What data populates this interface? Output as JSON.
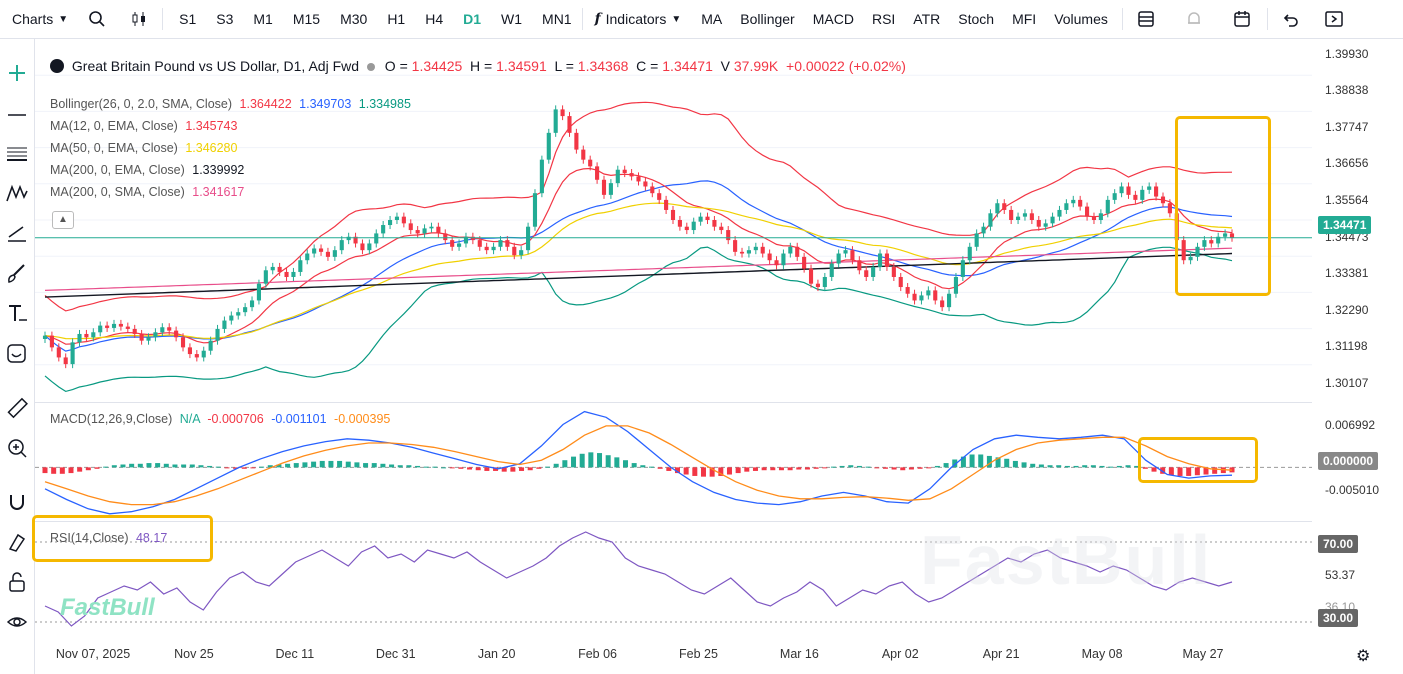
{
  "toolbar": {
    "charts": "Charts",
    "timeframes": [
      "S1",
      "S3",
      "M1",
      "M15",
      "M30",
      "H1",
      "H4",
      "D1",
      "W1",
      "MN1"
    ],
    "active_timeframe": "D1",
    "indicators": "Indicators",
    "studies": [
      "MA",
      "Bollinger",
      "MACD",
      "RSI",
      "ATR",
      "Stoch",
      "MFI",
      "Volumes"
    ]
  },
  "symbol": {
    "title": "Great Britain Pound vs US Dollar, D1, Adj Fwd",
    "o_label": "O",
    "o": "1.34425",
    "h_label": "H",
    "h": "1.34591",
    "l_label": "L",
    "l": "1.34368",
    "c_label": "C",
    "c": "1.34471",
    "v_label": "V",
    "v": "37.99K",
    "chg": "+0.00022 (+0.02%)"
  },
  "studies_legend": {
    "boll": {
      "label": "Bollinger(26, 0, 2.0, SMA, Close)",
      "v1": "1.364422",
      "v2": "1.349703",
      "v3": "1.334985"
    },
    "ma12": {
      "label": "MA(12, 0, EMA, Close)",
      "v": "1.345743"
    },
    "ma50": {
      "label": "MA(50, 0, EMA, Close)",
      "v": "1.346280"
    },
    "ma200e": {
      "label": "MA(200, 0, EMA, Close)",
      "v": "1.339992"
    },
    "ma200s": {
      "label": "MA(200, 0, SMA, Close)",
      "v": "1.341617"
    },
    "macd": {
      "label": "MACD(12,26,9,Close)",
      "na": "N/A",
      "v1": "-0.000706",
      "v2": "-0.001101",
      "v3": "-0.000395"
    },
    "rsi": {
      "label": "RSI(14,Close)",
      "v": "48.17"
    }
  },
  "price_axis": {
    "labels": [
      "1.39930",
      "1.38838",
      "1.37747",
      "1.36656",
      "1.35564",
      "1.34473",
      "1.33381",
      "1.32290",
      "1.31198",
      "1.30107"
    ],
    "current": "1.34471"
  },
  "macd_axis": {
    "labels": [
      "0.006992",
      "-0.005010"
    ],
    "current": "0.000000"
  },
  "rsi_axis": {
    "labels": [
      "53.37",
      "36.10"
    ],
    "upper": "70.00",
    "lower": "30.00"
  },
  "time_axis": {
    "labels": [
      "Nov 07, 2025",
      "Nov 25",
      "Dec 11",
      "Dec 31",
      "Jan 20",
      "Feb 06",
      "Feb 25",
      "Mar 16",
      "Apr 02",
      "Apr 21",
      "May 08",
      "May 27"
    ]
  },
  "watermark": "FastBull",
  "colors": {
    "up": "#22ab94",
    "down": "#f23645",
    "accent": "#2962ff",
    "highlight": "#f5b800",
    "rsi": "#7e57c2"
  },
  "chart_data": {
    "type": "candlestick",
    "y_range": [
      1.296,
      1.404
    ],
    "closes": [
      1.3155,
      1.312,
      1.309,
      1.307,
      1.3135,
      1.316,
      1.315,
      1.3165,
      1.3185,
      1.3178,
      1.319,
      1.3182,
      1.3175,
      1.316,
      1.314,
      1.315,
      1.3165,
      1.318,
      1.317,
      1.315,
      1.312,
      1.31,
      1.309,
      1.311,
      1.314,
      1.3175,
      1.32,
      1.3215,
      1.3225,
      1.324,
      1.326,
      1.331,
      1.335,
      1.336,
      1.3345,
      1.333,
      1.3345,
      1.338,
      1.34,
      1.3415,
      1.3405,
      1.339,
      1.341,
      1.344,
      1.345,
      1.343,
      1.341,
      1.343,
      1.346,
      1.3485,
      1.35,
      1.351,
      1.349,
      1.347,
      1.346,
      1.3475,
      1.348,
      1.346,
      1.344,
      1.342,
      1.343,
      1.345,
      1.344,
      1.342,
      1.341,
      1.342,
      1.344,
      1.342,
      1.3395,
      1.341,
      1.348,
      1.358,
      1.368,
      1.376,
      1.383,
      1.381,
      1.376,
      1.371,
      1.368,
      1.366,
      1.362,
      1.3575,
      1.361,
      1.365,
      1.364,
      1.363,
      1.3615,
      1.36,
      1.358,
      1.356,
      1.353,
      1.35,
      1.348,
      1.347,
      1.3495,
      1.351,
      1.35,
      1.348,
      1.347,
      1.344,
      1.3405,
      1.34,
      1.341,
      1.342,
      1.34,
      1.338,
      1.3365,
      1.34,
      1.342,
      1.339,
      1.3355,
      1.331,
      1.33,
      1.333,
      1.337,
      1.34,
      1.341,
      1.338,
      1.335,
      1.333,
      1.336,
      1.34,
      1.336,
      1.333,
      1.33,
      1.328,
      1.326,
      1.3275,
      1.329,
      1.326,
      1.324,
      1.328,
      1.333,
      1.338,
      1.342,
      1.346,
      1.348,
      1.352,
      1.355,
      1.353,
      1.35,
      1.351,
      1.352,
      1.35,
      1.348,
      1.349,
      1.351,
      1.353,
      1.355,
      1.356,
      1.354,
      1.351,
      1.35,
      1.352,
      1.356,
      1.358,
      1.36,
      1.3575,
      1.356,
      1.359,
      1.36,
      1.357,
      1.355,
      1.352,
      1.344,
      1.338,
      1.339,
      1.342,
      1.344,
      1.343,
      1.345,
      1.346,
      1.3447
    ],
    "macd": {
      "range": [
        -0.0075,
        0.009
      ],
      "hist": [
        -0.0008,
        -0.0009,
        -0.0009,
        -0.0008,
        -0.0006,
        -0.0004,
        -0.0002,
        0.0001,
        0.0003,
        0.0004,
        0.0005,
        0.0005,
        0.0006,
        0.0006,
        0.0005,
        0.0004,
        0.0004,
        0.0004,
        0.0003,
        0.0002,
        0.0001,
        -0.0001,
        -0.0002,
        -0.0002,
        -0.0001,
        0.0001,
        0.0003,
        0.0004,
        0.0005,
        0.0006,
        0.0007,
        0.0008,
        0.0009,
        0.0009,
        0.0009,
        0.0008,
        0.0007,
        0.0006,
        0.0006,
        0.0005,
        0.0004,
        0.0003,
        0.0003,
        0.0002,
        0.0001,
        0.0001,
        0.0,
        -0.0001,
        -0.0002,
        -0.0003,
        -0.0004,
        -0.0005,
        -0.0005,
        -0.0006,
        -0.0006,
        -0.0005,
        -0.0004,
        -0.0002,
        0.0001,
        0.0005,
        0.001,
        0.0015,
        0.0019,
        0.0021,
        0.002,
        0.0017,
        0.0014,
        0.001,
        0.0006,
        0.0003,
        0.0001,
        -0.0002,
        -0.0005,
        -0.0008,
        -0.001,
        -0.0012,
        -0.0013,
        -0.0013,
        -0.0012,
        -0.001,
        -0.0008,
        -0.0006,
        -0.0005,
        -0.0004,
        -0.0004,
        -0.0004,
        -0.0004,
        -0.0003,
        -0.0003,
        -0.0002,
        -0.0001,
        0.0001,
        0.0002,
        0.0003,
        0.0002,
        0.0001,
        -0.0001,
        -0.0002,
        -0.0003,
        -0.0004,
        -0.0003,
        -0.0002,
        -0.0001,
        0.0002,
        0.0006,
        0.0011,
        0.0015,
        0.0018,
        0.0018,
        0.0016,
        0.0014,
        0.0012,
        0.0009,
        0.0007,
        0.0005,
        0.0004,
        0.0003,
        0.0003,
        0.0002,
        0.0002,
        0.0003,
        0.0003,
        0.0002,
        0.0001,
        0.0002,
        0.0003,
        0.0002,
        -0.0002,
        -0.0006,
        -0.0009,
        -0.0011,
        -0.0012,
        -0.0012,
        -0.0011,
        -0.001,
        -0.0009,
        -0.0008,
        -0.0007
      ],
      "macd_line": [
        -0.003,
        -0.0045,
        -0.0058,
        -0.0065,
        -0.0062,
        -0.0055,
        -0.0045,
        -0.003,
        -0.0015,
        0.0,
        0.0012,
        0.0022,
        0.003,
        0.0036,
        0.004,
        0.0038,
        0.0034,
        0.0028,
        0.002,
        0.0012,
        0.0004,
        -0.0002,
        0.0005,
        0.003,
        0.006,
        0.0078,
        0.007,
        0.005,
        0.0025,
        0.0,
        -0.002,
        -0.0035,
        -0.0045,
        -0.005,
        -0.0052,
        -0.0048,
        -0.004,
        -0.0035,
        -0.004,
        -0.0048,
        -0.005,
        -0.003,
        0.0,
        0.0025,
        0.004,
        0.0045,
        0.0042,
        0.004,
        0.0042,
        0.0045,
        0.004,
        0.001,
        -0.001,
        -0.0015,
        -0.0012,
        -0.0011
      ],
      "signal_line": [
        -0.002,
        -0.003,
        -0.004,
        -0.0048,
        -0.0052,
        -0.0052,
        -0.0048,
        -0.004,
        -0.003,
        -0.0018,
        -0.0006,
        0.0006,
        0.0016,
        0.0024,
        0.003,
        0.0034,
        0.0034,
        0.0032,
        0.0028,
        0.0022,
        0.0015,
        0.0008,
        0.0004,
        0.001,
        0.0025,
        0.0045,
        0.0058,
        0.0058,
        0.0048,
        0.0032,
        0.0014,
        -0.0004,
        -0.002,
        -0.0032,
        -0.004,
        -0.0044,
        -0.0044,
        -0.0042,
        -0.0041,
        -0.0043,
        -0.0046,
        -0.0044,
        -0.003,
        -0.001,
        0.001,
        0.0025,
        0.0034,
        0.0038,
        0.004,
        0.0042,
        0.0042,
        0.003,
        0.0015,
        0.0005,
        -0.0002,
        -0.0004
      ]
    },
    "rsi": {
      "range": [
        20,
        80
      ],
      "values": [
        38,
        35,
        28,
        33,
        42,
        45,
        48,
        46,
        50,
        44,
        47,
        40,
        36,
        45,
        52,
        55,
        50,
        48,
        54,
        60,
        63,
        66,
        62,
        58,
        65,
        68,
        62,
        64,
        60,
        66,
        64,
        62,
        65,
        60,
        56,
        52,
        55,
        58,
        62,
        68,
        72,
        75,
        72,
        70,
        62,
        58,
        56,
        54,
        50,
        46,
        44,
        48,
        52,
        46,
        40,
        38,
        42,
        45,
        50,
        46,
        38,
        42,
        46,
        44,
        48,
        50,
        44,
        40,
        42,
        46,
        50,
        54,
        58,
        62,
        60,
        64,
        66,
        62,
        60,
        58,
        55,
        58,
        56,
        52,
        48,
        46,
        50,
        52,
        50,
        48,
        50
      ]
    }
  }
}
